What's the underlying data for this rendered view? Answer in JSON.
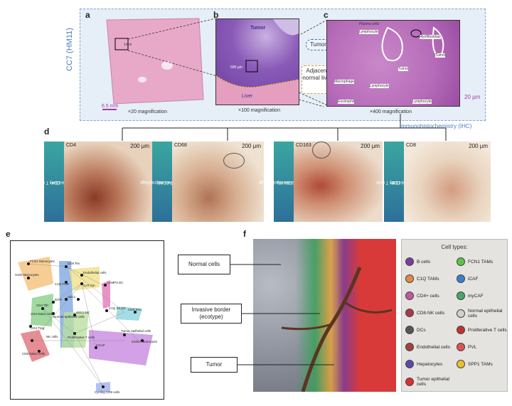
{
  "panels": {
    "a": "a",
    "b": "b",
    "c": "c",
    "d": "d",
    "e": "e",
    "f": "f"
  },
  "cc7": "CC7 (HM11)",
  "top": {
    "a_scale": "6.5 mm",
    "a_mag": "×20 magnification",
    "a_inset": "1mm",
    "b_mag": "×100 magnification",
    "b_tumor": "Tumor",
    "b_liver": "Liver",
    "b_inset": "500 µm",
    "callout_tumor": "Tumor",
    "callout_normal": "Adjacent normal liver",
    "c_mag": "×400 magnification",
    "c_scale": "20 µm",
    "c_cells": [
      "Plasma cells",
      "Lymphocyte",
      "Myofibroblast",
      "Tumor",
      "Tumor",
      "Macrophage",
      "Lymphocyte",
      "Eosinophil",
      "Lymphocyte"
    ]
  },
  "ihc_label": "Immunohistochemistry (IHC)",
  "ihc": [
    {
      "name": "CD4",
      "scale": "200 µm",
      "side1": "CD4+ T cells",
      "side2": "(anti-CD4)"
    },
    {
      "name": "CD68",
      "scale": "200 µm",
      "side1": "Pan-macrophage",
      "side2": "(anti-CD68)"
    },
    {
      "name": "CD163",
      "scale": "200 µm",
      "side1": "M2-like macrophage",
      "side2": "(anti-CD163)"
    },
    {
      "name": "CD8",
      "scale": "200 µm",
      "side1": "CD8+ T cells",
      "side2": "(anti-CD8)"
    }
  ],
  "network_nodes": [
    "FCN1 Monocytes",
    "S100 Monocytes",
    "CD8 Tex",
    "Endothelial cells",
    "C1Q TAM",
    "CAT Sm",
    "LAMP3 DC",
    "ICAF",
    "cDC1",
    "Normal epithelial cells",
    "CD4 Naive cells",
    "CD4 Tfh",
    "cDC1 DC",
    "C1Q SA DC",
    "CD8 Tem",
    "CD4 Treg",
    "NK cells",
    "mCAF",
    "Tumor epithelial cells",
    "S100A Monocytes",
    "CD8 Naive cells",
    "Proliferative T cells",
    "Cycling CD8 cells"
  ],
  "diagram_f": {
    "normal": "Normal cells",
    "border": "Invasive border (ecotype)",
    "tumor": "Tumor"
  },
  "legend": {
    "title": "Cell types:",
    "items": [
      "B cells",
      "FCN1 TAMs",
      "C1Q TAMs",
      "iCAF",
      "CD4+ cells",
      "myCAF",
      "CD8-NK cells",
      "Normal epithelial cells",
      "DCs",
      "Proliferative T cells",
      "Endothelial cells",
      "PVL",
      "Hepatocytes",
      "SPP1 TAMs",
      "Tumor epithelial cells"
    ],
    "colors": [
      "#7a3d9c",
      "#5ec24a",
      "#e4884a",
      "#3a7fd0",
      "#c05a9a",
      "#4aa56a",
      "#a93a4a",
      "#d0d0d0",
      "#555555",
      "#c23030",
      "#a64040",
      "#e05050",
      "#5a4ab0",
      "#e8c030",
      "#d83030"
    ]
  }
}
